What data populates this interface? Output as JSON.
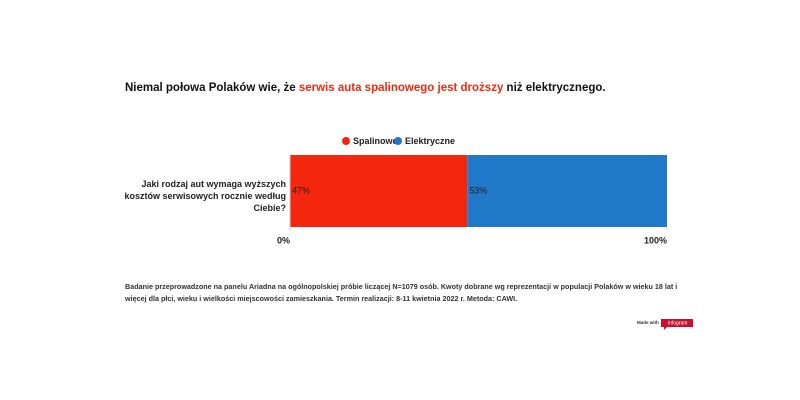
{
  "chart_data": {
    "type": "stacked-bar-horizontal",
    "title_parts": [
      {
        "text": "Niemal połowa Polaków wie, że ",
        "color": "#111111"
      },
      {
        "text": "serwis auta spalinowego jest droższy",
        "color": "#f0290f"
      },
      {
        "text": " niż elektrycznego.",
        "color": "#111111"
      }
    ],
    "categories": [
      "Jaki rodzaj aut wymaga wyższych kosztów serwisowych rocznie według Ciebie?"
    ],
    "series": [
      {
        "name": "Spalinowe",
        "color": "#f5260e",
        "values": [
          47
        ],
        "value_labels": [
          "47%"
        ]
      },
      {
        "name": "Elektryczne",
        "color": "#1f78c8",
        "values": [
          53
        ],
        "value_labels": [
          "53%"
        ]
      }
    ],
    "xlim": [
      0,
      100
    ],
    "xticks": [
      {
        "value": 0,
        "label": "0%"
      },
      {
        "value": 100,
        "label": "100%"
      }
    ],
    "grid": false,
    "legend_position": "top",
    "footnote_lines": [
      "Badanie przeprowadzone na panelu Ariadna na ogólnopolskiej próbie liczącej N=1079 osób. Kwoty dobrane wg reprezentacji w populacji Polaków w wieku 18 lat i",
      "więcej dla płci, wieku i wielkości miejscowości zamieszkania. Termin realizacji:  8-11 kwietnia 2022 r. Metoda: CAWI."
    ],
    "badge": {
      "prefix": "Made with",
      "brand": "infogram"
    }
  }
}
